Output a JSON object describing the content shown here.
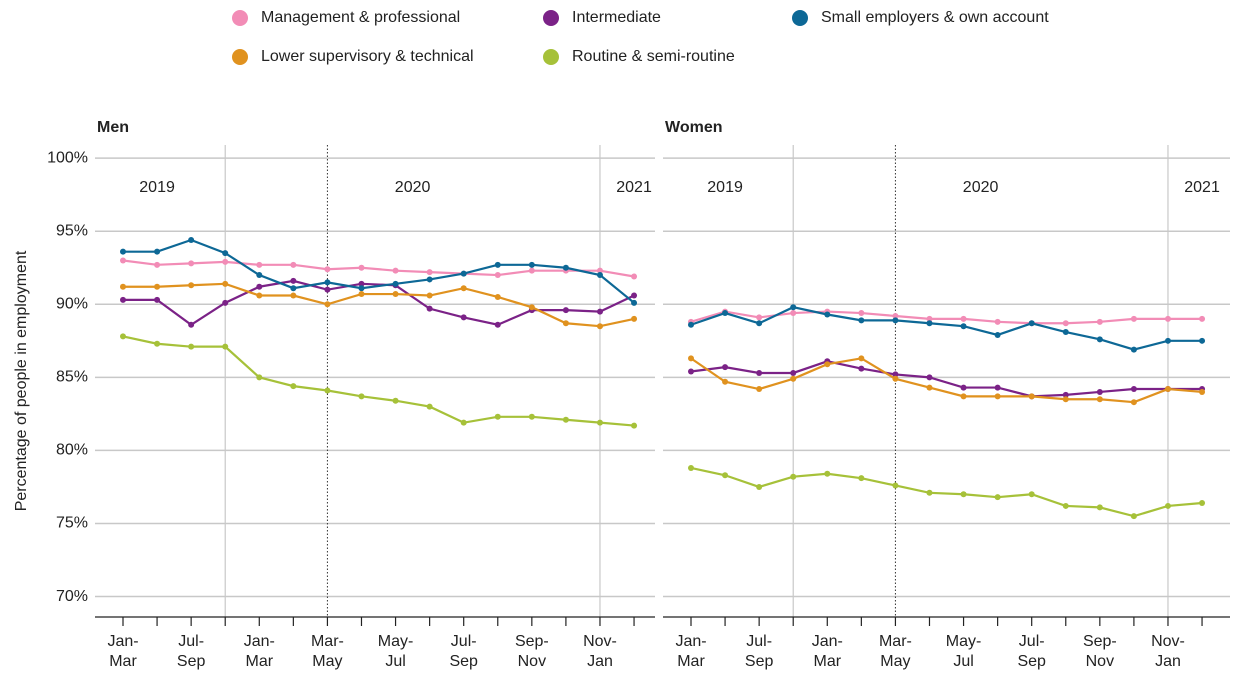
{
  "chart_data": [
    {
      "type": "line",
      "title": "Men",
      "y_label": "Percentage of people in employment",
      "annotations": [
        "2019",
        "2020",
        "2021"
      ],
      "categories": [
        "Jan-\nMar",
        null,
        "Jul-\nSep",
        null,
        "Jan-\nMar",
        null,
        "Mar-\nMay",
        null,
        "May-\nJul",
        null,
        "Jul-\nSep",
        null,
        "Sep-\nNov",
        null,
        "Nov-\nJan",
        null
      ],
      "ylim": [
        68.6,
        100.9
      ],
      "yticks": [
        {
          "value": 70,
          "label": "70%"
        },
        {
          "value": 75,
          "label": "75%"
        },
        {
          "value": 80,
          "label": "80%"
        },
        {
          "value": 85,
          "label": "85%"
        },
        {
          "value": 90,
          "label": "90%"
        },
        {
          "value": 95,
          "label": "95%"
        },
        {
          "value": 100,
          "label": "100%"
        }
      ],
      "grid": true,
      "series": [
        {
          "name": "Management & professional",
          "color": "#f28cb6",
          "values": [
            93.0,
            92.7,
            92.8,
            92.9,
            92.7,
            92.7,
            92.4,
            92.5,
            92.3,
            92.2,
            92.1,
            92.0,
            92.3,
            92.3,
            92.3,
            91.9
          ]
        },
        {
          "name": "Intermediate",
          "color": "#7b2287",
          "values": [
            90.3,
            90.3,
            88.6,
            90.1,
            91.2,
            91.6,
            91.0,
            91.4,
            91.3,
            89.7,
            89.1,
            88.6,
            89.6,
            89.6,
            89.5,
            90.6
          ]
        },
        {
          "name": "Small employers & own account",
          "color": "#0d6896",
          "values": [
            93.6,
            93.6,
            94.4,
            93.5,
            92.0,
            91.1,
            91.5,
            91.1,
            91.4,
            91.7,
            92.1,
            92.7,
            92.7,
            92.5,
            92.0,
            90.1
          ]
        },
        {
          "name": "Lower supervisory & technical",
          "color": "#e0921f",
          "values": [
            91.2,
            91.2,
            91.3,
            91.4,
            90.6,
            90.6,
            90.0,
            90.7,
            90.7,
            90.6,
            91.1,
            90.5,
            89.8,
            88.7,
            88.5,
            89.0
          ]
        },
        {
          "name": "Routine & semi-routine",
          "color": "#a6c139",
          "values": [
            87.8,
            87.3,
            87.1,
            87.1,
            85.0,
            84.4,
            84.1,
            83.7,
            83.4,
            83.0,
            81.9,
            82.3,
            82.3,
            82.1,
            81.9,
            81.7
          ]
        }
      ]
    },
    {
      "type": "line",
      "title": "Women",
      "annotations": [
        "2019",
        "2020",
        "2021"
      ],
      "categories": [
        "Jan-\nMar",
        null,
        "Jul-\nSep",
        null,
        "Jan-\nMar",
        null,
        "Mar-\nMay",
        null,
        "May-\nJul",
        null,
        "Jul-\nSep",
        null,
        "Sep-\nNov",
        null,
        "Nov-\nJan",
        null
      ],
      "ylim": [
        68.6,
        100.9
      ],
      "yticks": [
        70,
        75,
        80,
        85,
        90,
        95,
        100
      ],
      "grid": true,
      "series": [
        {
          "name": "Management & professional",
          "color": "#f28cb6",
          "values": [
            88.8,
            89.5,
            89.1,
            89.4,
            89.5,
            89.4,
            89.2,
            89.0,
            89.0,
            88.8,
            88.7,
            88.7,
            88.8,
            89.0,
            89.0,
            89.0
          ]
        },
        {
          "name": "Intermediate",
          "color": "#7b2287",
          "values": [
            85.4,
            85.7,
            85.3,
            85.3,
            86.1,
            85.6,
            85.2,
            85.0,
            84.3,
            84.3,
            83.7,
            83.8,
            84.0,
            84.2,
            84.2,
            84.2
          ]
        },
        {
          "name": "Small employers & own account",
          "color": "#0d6896",
          "values": [
            88.6,
            89.4,
            88.7,
            89.8,
            89.3,
            88.9,
            88.9,
            88.7,
            88.5,
            87.9,
            88.7,
            88.1,
            87.6,
            86.9,
            87.5,
            87.5
          ]
        },
        {
          "name": "Lower supervisory & technical",
          "color": "#e0921f",
          "values": [
            86.3,
            84.7,
            84.2,
            84.9,
            85.9,
            86.3,
            84.9,
            84.3,
            83.7,
            83.7,
            83.7,
            83.5,
            83.5,
            83.3,
            84.2,
            84.0
          ]
        },
        {
          "name": "Routine & semi-routine",
          "color": "#a6c139",
          "values": [
            78.8,
            78.3,
            77.5,
            78.2,
            78.4,
            78.1,
            77.6,
            77.1,
            77.0,
            76.8,
            77.0,
            76.2,
            76.1,
            75.5,
            76.2,
            76.4
          ]
        }
      ]
    }
  ]
}
